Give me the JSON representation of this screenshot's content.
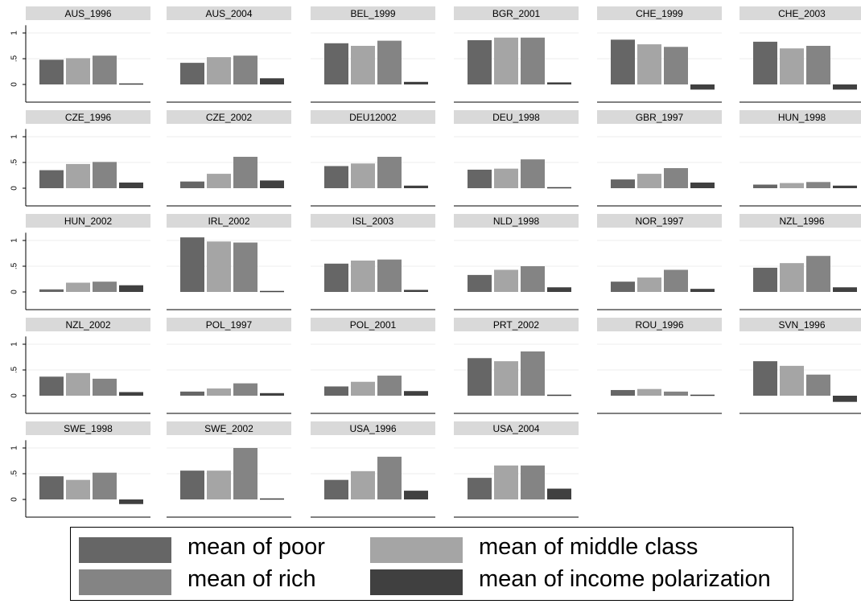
{
  "chart_data": {
    "type": "bar",
    "layout": "small-multiples",
    "yticks": [
      "0",
      ".5",
      "1"
    ],
    "ylim": [
      0,
      1.15
    ],
    "series": [
      {
        "name": "mean of poor",
        "color": "#666666"
      },
      {
        "name": "mean of middle class",
        "color": "#a5a5a5"
      },
      {
        "name": "mean of rich",
        "color": "#848484"
      },
      {
        "name": "mean of income polarization",
        "color": "#404040"
      }
    ],
    "panels": [
      {
        "title": "AUS_1996",
        "values": [
          0.48,
          0.51,
          0.56,
          0.02
        ]
      },
      {
        "title": "AUS_2004",
        "values": [
          0.42,
          0.53,
          0.56,
          0.12
        ]
      },
      {
        "title": "BEL_1999",
        "values": [
          0.8,
          0.75,
          0.85,
          0.05
        ]
      },
      {
        "title": "BGR_2001",
        "values": [
          0.86,
          0.91,
          0.91,
          0.04
        ]
      },
      {
        "title": "CHE_1999",
        "values": [
          0.87,
          0.78,
          0.73,
          -0.1
        ]
      },
      {
        "title": "CHE_2003",
        "values": [
          0.83,
          0.7,
          0.75,
          -0.1
        ]
      },
      {
        "title": "CZE_1996",
        "values": [
          0.35,
          0.47,
          0.51,
          0.11
        ]
      },
      {
        "title": "CZE_2002",
        "values": [
          0.13,
          0.28,
          0.61,
          0.15
        ]
      },
      {
        "title": "DEU12002",
        "values": [
          0.43,
          0.48,
          0.61,
          0.05
        ]
      },
      {
        "title": "DEU_1998",
        "values": [
          0.36,
          0.38,
          0.56,
          0.02
        ]
      },
      {
        "title": "GBR_1997",
        "values": [
          0.17,
          0.28,
          0.39,
          0.11
        ]
      },
      {
        "title": "HUN_1998",
        "values": [
          0.07,
          0.1,
          0.12,
          0.05
        ]
      },
      {
        "title": "HUN_2002",
        "values": [
          0.05,
          0.18,
          0.2,
          0.13
        ]
      },
      {
        "title": "IRL_2002",
        "values": [
          1.06,
          0.98,
          0.96,
          0.02
        ]
      },
      {
        "title": "ISL_2003",
        "values": [
          0.55,
          0.61,
          0.63,
          0.04
        ]
      },
      {
        "title": "NLD_1998",
        "values": [
          0.33,
          0.43,
          0.5,
          0.09
        ]
      },
      {
        "title": "NOR_1997",
        "values": [
          0.2,
          0.28,
          0.43,
          0.06
        ]
      },
      {
        "title": "NZL_1996",
        "values": [
          0.47,
          0.56,
          0.7,
          0.09
        ]
      },
      {
        "title": "NZL_2002",
        "values": [
          0.37,
          0.44,
          0.33,
          0.07
        ]
      },
      {
        "title": "POL_1997",
        "values": [
          0.08,
          0.14,
          0.24,
          0.05
        ]
      },
      {
        "title": "POL_2001",
        "values": [
          0.18,
          0.27,
          0.39,
          0.09
        ]
      },
      {
        "title": "PRT_2002",
        "values": [
          0.73,
          0.67,
          0.86,
          0.02
        ]
      },
      {
        "title": "ROU_1996",
        "values": [
          0.11,
          0.13,
          0.08,
          0.02
        ]
      },
      {
        "title": "SVN_1996",
        "values": [
          0.67,
          0.58,
          0.41,
          -0.12
        ]
      },
      {
        "title": "SWE_1998",
        "values": [
          0.45,
          0.38,
          0.52,
          -0.09
        ]
      },
      {
        "title": "SWE_2002",
        "values": [
          0.56,
          0.56,
          1.0,
          0.02
        ]
      },
      {
        "title": "USA_1996",
        "values": [
          0.38,
          0.55,
          0.83,
          0.17
        ]
      },
      {
        "title": "USA_2004",
        "values": [
          0.42,
          0.66,
          0.66,
          0.21
        ]
      }
    ]
  }
}
